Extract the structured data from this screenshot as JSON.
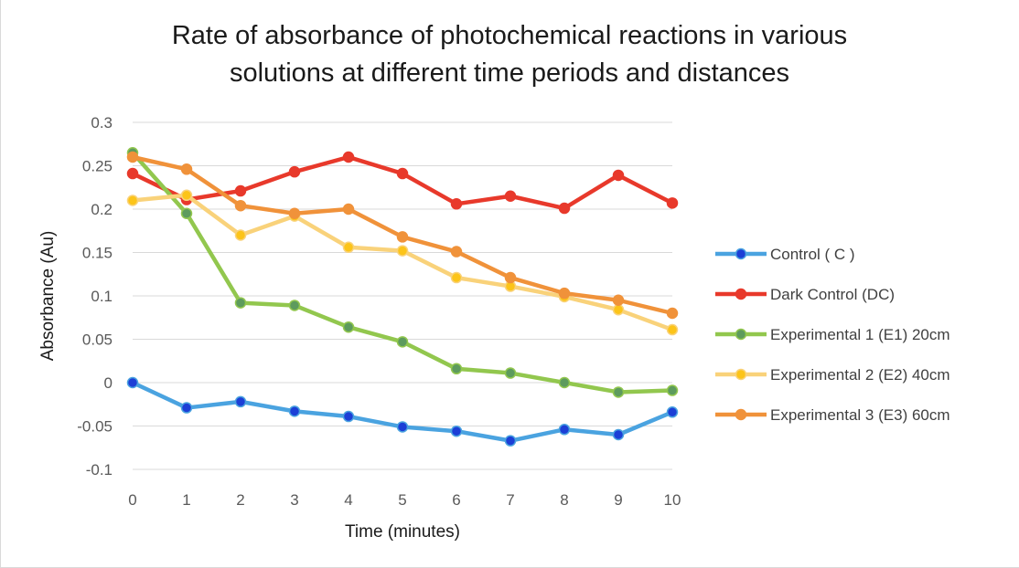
{
  "chart_data": {
    "type": "line",
    "title": [
      "Rate of absorbance of photochemical reactions in various",
      "solutions at different time periods and distances"
    ],
    "xlabel": "Time (minutes)",
    "ylabel": "Absorbance (Au)",
    "x": [
      0,
      1,
      2,
      3,
      4,
      5,
      6,
      7,
      8,
      9,
      10
    ],
    "xtick_labels": [
      "0",
      "1",
      "2",
      "3",
      "4",
      "5",
      "6",
      "7",
      "8",
      "9",
      "10"
    ],
    "ylim": [
      -0.1,
      0.3
    ],
    "yticks": [
      -0.1,
      -0.05,
      0,
      0.05,
      0.1,
      0.15,
      0.2,
      0.25,
      0.3
    ],
    "ytick_labels": [
      "-0.1",
      "-0.05",
      "0",
      "0.05",
      "0.1",
      "0.15",
      "0.2",
      "0.25",
      "0.3"
    ],
    "grid": true,
    "legend_position": "right",
    "series": [
      {
        "name": "Control ( C )",
        "line_color": "#4aa3e0",
        "marker_color": "#1c3fd6",
        "values": [
          0.0,
          -0.029,
          -0.022,
          -0.033,
          -0.039,
          -0.051,
          -0.056,
          -0.067,
          -0.054,
          -0.06,
          -0.034
        ]
      },
      {
        "name": "Dark Control (DC)",
        "line_color": "#e8392b",
        "marker_color": "#e8392b",
        "values": [
          0.241,
          0.211,
          0.221,
          0.243,
          0.26,
          0.241,
          0.206,
          0.215,
          0.201,
          0.239,
          0.207
        ]
      },
      {
        "name": "Experimental 1 (E1) 20cm",
        "line_color": "#92c74e",
        "marker_color": "#5d9b5d",
        "values": [
          0.265,
          0.195,
          0.092,
          0.089,
          0.064,
          0.047,
          0.016,
          0.011,
          0.0,
          -0.011,
          -0.009
        ]
      },
      {
        "name": "Experimental 2 (E2) 40cm",
        "line_color": "#f9d27a",
        "marker_color": "#fcc419",
        "values": [
          0.21,
          0.216,
          0.17,
          0.192,
          0.156,
          0.152,
          0.121,
          0.111,
          0.099,
          0.084,
          0.061
        ]
      },
      {
        "name": "Experimental 3 (E3) 60cm",
        "line_color": "#f0923a",
        "marker_color": "#f0923a",
        "values": [
          0.26,
          0.246,
          0.204,
          0.195,
          0.2,
          0.168,
          0.151,
          0.121,
          0.103,
          0.095,
          0.08
        ]
      }
    ]
  }
}
